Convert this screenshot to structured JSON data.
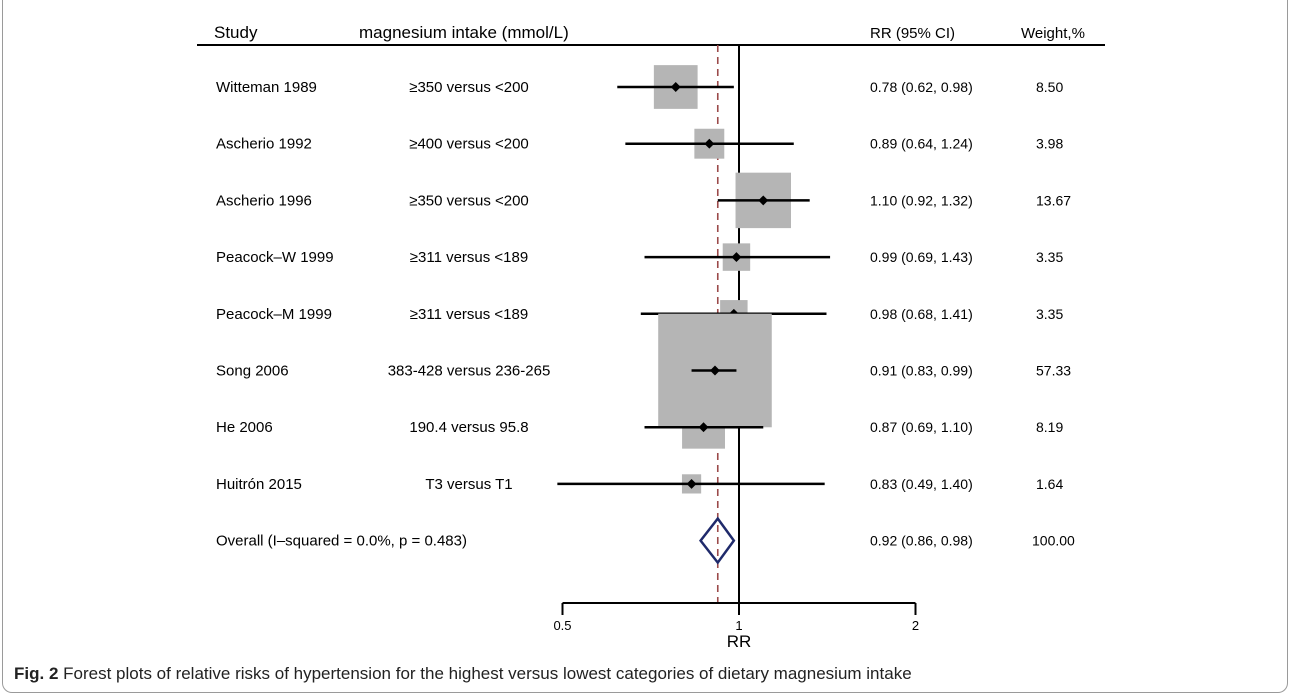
{
  "chart_data": {
    "type": "forest",
    "headers": {
      "study": "Study",
      "intake": "magnesium intake (mmol/L)",
      "rr_ci": "RR (95% CI)",
      "weight": "Weight,%"
    },
    "studies": [
      {
        "study": "Witteman 1989",
        "comparison": "≥350 versus  <200",
        "rr": 0.78,
        "lower": 0.62,
        "upper": 0.98,
        "rr_text": "0.78 (0.62, 0.98)",
        "weight": 8.5,
        "weight_text": "8.50"
      },
      {
        "study": "Ascherio 1992",
        "comparison": "≥400 versus  <200",
        "rr": 0.89,
        "lower": 0.64,
        "upper": 1.24,
        "rr_text": "0.89 (0.64, 1.24)",
        "weight": 3.98,
        "weight_text": "3.98"
      },
      {
        "study": "Ascherio 1996",
        "comparison": "≥350 versus  <200",
        "rr": 1.1,
        "lower": 0.92,
        "upper": 1.32,
        "rr_text": "1.10 (0.92, 1.32)",
        "weight": 13.67,
        "weight_text": "13.67"
      },
      {
        "study": "Peacock–W 1999",
        "comparison": "≥311 versus  <189",
        "rr": 0.99,
        "lower": 0.69,
        "upper": 1.43,
        "rr_text": "0.99 (0.69, 1.43)",
        "weight": 3.35,
        "weight_text": "3.35"
      },
      {
        "study": "Peacock–M 1999",
        "comparison": "≥311 versus  <189",
        "rr": 0.98,
        "lower": 0.68,
        "upper": 1.41,
        "rr_text": "0.98 (0.68, 1.41)",
        "weight": 3.35,
        "weight_text": "3.35"
      },
      {
        "study": "Song 2006",
        "comparison": "383-428  versus  236-265",
        "rr": 0.91,
        "lower": 0.83,
        "upper": 0.99,
        "rr_text": "0.91 (0.83, 0.99)",
        "weight": 57.33,
        "weight_text": "57.33"
      },
      {
        "study": "He 2006",
        "comparison": "190.4 versus 95.8",
        "rr": 0.87,
        "lower": 0.69,
        "upper": 1.1,
        "rr_text": "0.87 (0.69, 1.10)",
        "weight": 8.19,
        "weight_text": "8.19"
      },
      {
        "study": "Huitrón 2015",
        "comparison": "T3 versus  T1",
        "rr": 0.83,
        "lower": 0.49,
        "upper": 1.4,
        "rr_text": "0.83 (0.49, 1.40)",
        "weight": 1.64,
        "weight_text": "1.64"
      }
    ],
    "overall": {
      "label": "Overall  (I–squared = 0.0%, p = 0.483)",
      "rr": 0.92,
      "lower": 0.86,
      "upper": 0.98,
      "rr_text": "0.92 (0.86, 0.98)",
      "weight_text": "100.00"
    },
    "x_axis": {
      "label": "RR",
      "scale": "log",
      "ticks": [
        0.5,
        1,
        2
      ],
      "tick_labels": [
        "0.5",
        "1",
        "2"
      ],
      "range": [
        0.5,
        2
      ]
    },
    "null_line": 1
  },
  "caption": {
    "label": "Fig. 2",
    "text": " Forest plots of relative risks of hypertension for the highest versus lowest categories of dietary magnesium intake"
  },
  "colors": {
    "square": "#b5b5b5",
    "diamond": "#1f2a6b",
    "overall_line": "#9b4a4a",
    "line": "#000000"
  }
}
